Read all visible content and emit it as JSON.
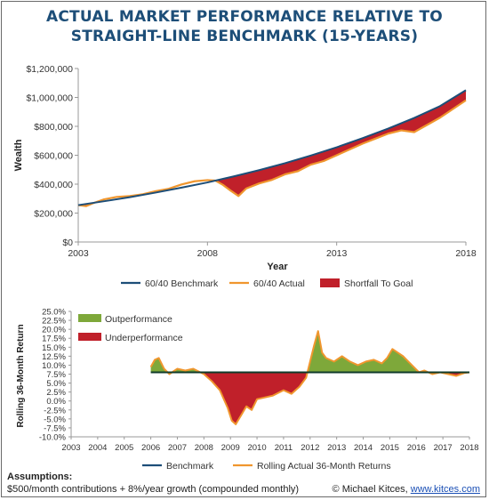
{
  "title": {
    "line1": "ACTUAL MARKET PERFORMANCE RELATIVE TO",
    "line2": "STRAIGHT-LINE BENCHMARK (15-YEARS)"
  },
  "colors": {
    "title": "#1d4e78",
    "benchmark": "#1d4e78",
    "actual": "#f0962e",
    "shortfall": "#c0202a",
    "outperformance": "#7ea83a",
    "underperformance": "#c0202a",
    "rolling": "#f0962e"
  },
  "chart_data": [
    {
      "type": "area",
      "ylabel": "Wealth",
      "xlabel": "Year",
      "xlim": [
        2003,
        2018
      ],
      "ylim": [
        0,
        1200000
      ],
      "xticks": [
        "2003",
        "2008",
        "2013",
        "2018"
      ],
      "xtick_values": [
        2003,
        2008,
        2013,
        2018
      ],
      "yticks": [
        "$0",
        "$200,000",
        "$400,000",
        "$600,000",
        "$800,000",
        "$1,000,000",
        "$1,200,000"
      ],
      "ytick_values": [
        0,
        200000,
        400000,
        600000,
        800000,
        1000000,
        1200000
      ],
      "legend_position": "bottom",
      "series": [
        {
          "name": "60/40 Benchmark",
          "x": [
            2003.0,
            2004.0,
            2005.0,
            2006.0,
            2007.0,
            2008.0,
            2009.0,
            2010.0,
            2011.0,
            2012.0,
            2013.0,
            2014.0,
            2015.0,
            2016.0,
            2017.0,
            2018.0
          ],
          "y": [
            255000,
            282000,
            310000,
            342000,
            376000,
            412000,
            453000,
            497000,
            545000,
            598000,
            655000,
            718000,
            785000,
            858000,
            940000,
            1050000
          ]
        },
        {
          "name": "60/40 Actual",
          "x": [
            2003.0,
            2003.3,
            2003.6,
            2004.0,
            2004.5,
            2005.0,
            2005.5,
            2006.0,
            2006.5,
            2007.0,
            2007.5,
            2008.0,
            2008.3,
            2008.6,
            2008.9,
            2009.2,
            2009.5,
            2010.0,
            2010.5,
            2011.0,
            2011.5,
            2012.0,
            2012.5,
            2013.0,
            2013.5,
            2014.0,
            2014.5,
            2015.0,
            2015.5,
            2016.0,
            2016.5,
            2017.0,
            2017.5,
            2018.0
          ],
          "y": [
            255000,
            248000,
            270000,
            295000,
            312000,
            318000,
            330000,
            352000,
            368000,
            398000,
            420000,
            428000,
            425000,
            395000,
            355000,
            318000,
            370000,
            405000,
            430000,
            468000,
            490000,
            535000,
            560000,
            600000,
            640000,
            680000,
            715000,
            750000,
            772000,
            760000,
            810000,
            860000,
            920000,
            980000
          ]
        },
        {
          "name": "Shortfall To Goal"
        }
      ]
    },
    {
      "type": "area",
      "ylabel": "Rolling 36-Month Return",
      "xlim": [
        2003,
        2018
      ],
      "ylim": [
        -10,
        25
      ],
      "xticks": [
        "2003",
        "2004",
        "2005",
        "2006",
        "2007",
        "2008",
        "2009",
        "2010",
        "2011",
        "2012",
        "2013",
        "2014",
        "2015",
        "2016",
        "2017",
        "2018"
      ],
      "xtick_values": [
        2003,
        2004,
        2005,
        2006,
        2007,
        2008,
        2009,
        2010,
        2011,
        2012,
        2013,
        2014,
        2015,
        2016,
        2017,
        2018
      ],
      "yticks": [
        "-10.0%",
        "-7.5%",
        "-5.0%",
        "-2.5%",
        "0.0%",
        "2.5%",
        "5.0%",
        "7.5%",
        "10.0%",
        "12.5%",
        "15.0%",
        "17.5%",
        "20.0%",
        "22.5%",
        "25.0%"
      ],
      "ytick_values": [
        -10,
        -7.5,
        -5,
        -2.5,
        0,
        2.5,
        5,
        7.5,
        10,
        12.5,
        15,
        17.5,
        20,
        22.5,
        25
      ],
      "legend_position": "bottom",
      "fill_legend": [
        "Outperformance",
        "Underperformance"
      ],
      "series": [
        {
          "name": "Benchmark",
          "x": [
            2006.0,
            2018.0
          ],
          "y": [
            8.0,
            8.0
          ]
        },
        {
          "name": "Rolling Actual 36-Month Returns",
          "x": [
            2006.0,
            2006.15,
            2006.3,
            2006.5,
            2006.7,
            2007.0,
            2007.3,
            2007.6,
            2008.0,
            2008.3,
            2008.6,
            2008.9,
            2009.05,
            2009.2,
            2009.4,
            2009.6,
            2009.8,
            2010.0,
            2010.3,
            2010.6,
            2011.0,
            2011.3,
            2011.6,
            2011.85,
            2012.0,
            2012.15,
            2012.3,
            2012.45,
            2012.6,
            2012.9,
            2013.2,
            2013.5,
            2013.8,
            2014.1,
            2014.4,
            2014.7,
            2014.9,
            2015.1,
            2015.3,
            2015.5,
            2015.7,
            2015.9,
            2016.1,
            2016.3,
            2016.6,
            2016.9,
            2017.2,
            2017.5,
            2017.8,
            2018.0
          ],
          "y": [
            9.5,
            11.5,
            12.0,
            9.0,
            7.5,
            9.0,
            8.5,
            9.0,
            7.5,
            5.5,
            3.0,
            -2.0,
            -5.5,
            -6.5,
            -4.0,
            -1.5,
            -2.5,
            0.5,
            1.0,
            1.5,
            3.0,
            2.0,
            4.0,
            6.5,
            11.0,
            15.5,
            19.5,
            13.5,
            12.0,
            11.0,
            12.5,
            11.0,
            10.0,
            11.0,
            11.5,
            10.5,
            12.0,
            14.5,
            13.5,
            12.5,
            11.0,
            9.5,
            8.0,
            8.5,
            7.5,
            8.0,
            7.5,
            7.0,
            7.8,
            8.0
          ]
        }
      ]
    }
  ],
  "assumptions": {
    "heading": "Assumptions:",
    "text": "$500/month contributions + 8%/year growth (compounded monthly)"
  },
  "credit": {
    "text": "© Michael Kitces,",
    "link": "www.kitces.com"
  }
}
